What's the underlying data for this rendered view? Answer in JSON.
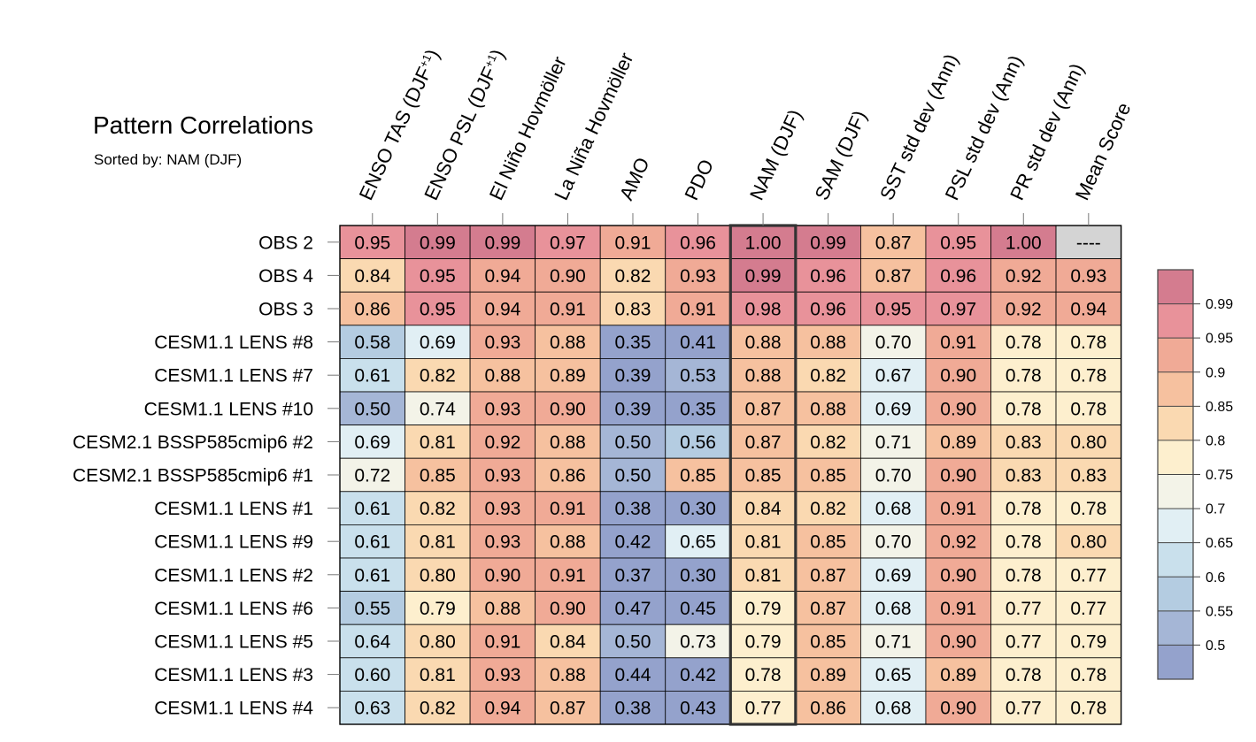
{
  "chart_data": {
    "type": "heatmap",
    "title": "Pattern Correlations",
    "subtitle": "Sorted by: NAM (DJF)",
    "columns": [
      {
        "text": "ENSO TAS (DJF",
        "sup": "+1",
        "tail": ")"
      },
      {
        "text": "ENSO PSL (DJF",
        "sup": "+1",
        "tail": ")"
      },
      {
        "text": "El Niño Hovmöller",
        "sup": "",
        "tail": ""
      },
      {
        "text": "La Niña Hovmöller",
        "sup": "",
        "tail": ""
      },
      {
        "text": "AMO",
        "sup": "",
        "tail": ""
      },
      {
        "text": "PDO",
        "sup": "",
        "tail": ""
      },
      {
        "text": "NAM (DJF)",
        "sup": "",
        "tail": ""
      },
      {
        "text": "SAM (DJF)",
        "sup": "",
        "tail": ""
      },
      {
        "text": "SST std dev (Ann)",
        "sup": "",
        "tail": ""
      },
      {
        "text": "PSL std dev (Ann)",
        "sup": "",
        "tail": ""
      },
      {
        "text": "PR std dev (Ann)",
        "sup": "",
        "tail": ""
      },
      {
        "text": "Mean Score",
        "sup": "",
        "tail": ""
      }
    ],
    "rows": [
      "OBS 2",
      "OBS 4",
      "OBS 3",
      "CESM1.1 LENS #8",
      "CESM1.1 LENS #7",
      "CESM1.1 LENS #10",
      "CESM2.1 BSSP585cmip6 #2",
      "CESM2.1 BSSP585cmip6 #1",
      "CESM1.1 LENS #1",
      "CESM1.1 LENS #9",
      "CESM1.1 LENS #2",
      "CESM1.1 LENS #6",
      "CESM1.1 LENS #5",
      "CESM1.1 LENS #3",
      "CESM1.1 LENS #4"
    ],
    "values": [
      [
        "0.95",
        "0.99",
        "0.99",
        "0.97",
        "0.91",
        "0.96",
        "1.00",
        "0.99",
        "0.87",
        "0.95",
        "1.00",
        "----"
      ],
      [
        "0.84",
        "0.95",
        "0.94",
        "0.90",
        "0.82",
        "0.93",
        "0.99",
        "0.96",
        "0.87",
        "0.96",
        "0.92",
        "0.93"
      ],
      [
        "0.86",
        "0.95",
        "0.94",
        "0.91",
        "0.83",
        "0.91",
        "0.98",
        "0.96",
        "0.95",
        "0.97",
        "0.92",
        "0.94"
      ],
      [
        "0.58",
        "0.69",
        "0.93",
        "0.88",
        "0.35",
        "0.41",
        "0.88",
        "0.88",
        "0.70",
        "0.91",
        "0.78",
        "0.78"
      ],
      [
        "0.61",
        "0.82",
        "0.88",
        "0.89",
        "0.39",
        "0.53",
        "0.88",
        "0.82",
        "0.67",
        "0.90",
        "0.78",
        "0.78"
      ],
      [
        "0.50",
        "0.74",
        "0.93",
        "0.90",
        "0.39",
        "0.35",
        "0.87",
        "0.88",
        "0.69",
        "0.90",
        "0.78",
        "0.78"
      ],
      [
        "0.69",
        "0.81",
        "0.92",
        "0.88",
        "0.50",
        "0.56",
        "0.87",
        "0.82",
        "0.71",
        "0.89",
        "0.83",
        "0.80"
      ],
      [
        "0.72",
        "0.85",
        "0.93",
        "0.86",
        "0.50",
        "0.85",
        "0.85",
        "0.85",
        "0.70",
        "0.90",
        "0.83",
        "0.83"
      ],
      [
        "0.61",
        "0.82",
        "0.93",
        "0.91",
        "0.38",
        "0.30",
        "0.84",
        "0.82",
        "0.68",
        "0.91",
        "0.78",
        "0.78"
      ],
      [
        "0.61",
        "0.81",
        "0.93",
        "0.88",
        "0.42",
        "0.65",
        "0.81",
        "0.85",
        "0.70",
        "0.92",
        "0.78",
        "0.80"
      ],
      [
        "0.61",
        "0.80",
        "0.90",
        "0.91",
        "0.37",
        "0.30",
        "0.81",
        "0.87",
        "0.69",
        "0.90",
        "0.78",
        "0.77"
      ],
      [
        "0.55",
        "0.79",
        "0.88",
        "0.90",
        "0.47",
        "0.45",
        "0.79",
        "0.87",
        "0.68",
        "0.91",
        "0.77",
        "0.77"
      ],
      [
        "0.64",
        "0.80",
        "0.91",
        "0.84",
        "0.50",
        "0.73",
        "0.79",
        "0.85",
        "0.71",
        "0.90",
        "0.77",
        "0.79"
      ],
      [
        "0.60",
        "0.81",
        "0.93",
        "0.88",
        "0.44",
        "0.42",
        "0.78",
        "0.89",
        "0.65",
        "0.89",
        "0.78",
        "0.78"
      ],
      [
        "0.63",
        "0.82",
        "0.94",
        "0.87",
        "0.38",
        "0.43",
        "0.77",
        "0.86",
        "0.68",
        "0.90",
        "0.77",
        "0.78"
      ]
    ],
    "highlight_column": 6,
    "colorbar": {
      "levels": [
        "0.99",
        "0.95",
        "0.9",
        "0.85",
        "0.8",
        "0.75",
        "0.7",
        "0.65",
        "0.6",
        "0.55",
        "0.5"
      ],
      "thresholds": [
        0.99,
        0.95,
        0.9,
        0.85,
        0.8,
        0.75,
        0.7,
        0.65,
        0.6,
        0.55,
        0.5
      ],
      "colors": [
        "#d47c8f",
        "#e8929a",
        "#f0aa96",
        "#f6c19f",
        "#fad9b1",
        "#fdefce",
        "#f3f3e8",
        "#e1eff4",
        "#c9e0ec",
        "#b4cce1",
        "#a5b6d6",
        "#94a2cc"
      ],
      "missing_color": "#d4d4d4"
    }
  }
}
